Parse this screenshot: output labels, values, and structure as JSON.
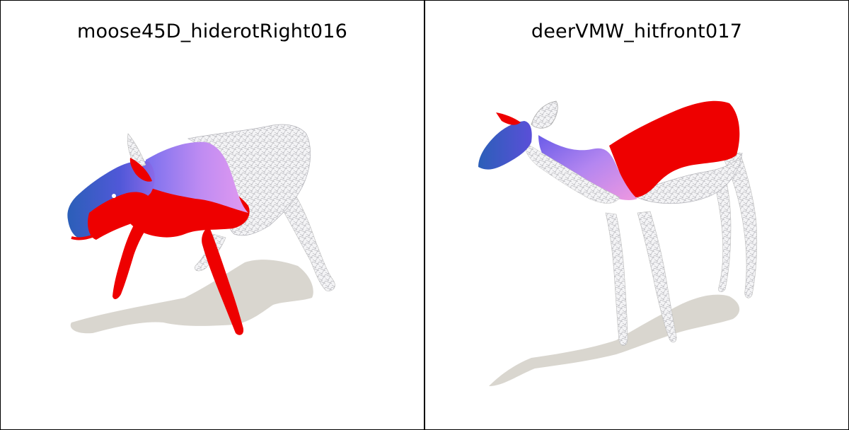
{
  "panels": [
    {
      "title": "moose45D_hiderotRight016",
      "subject": "moose"
    },
    {
      "title": "deerVMW_hitfront017",
      "subject": "deer"
    }
  ],
  "colors": {
    "background": "#ffffff",
    "border": "#000000",
    "shadow": "#d9d6cf",
    "mesh": "#e8e8ea",
    "red": "#ee0000",
    "blue": "#3a55c8",
    "violet": "#c58cf0"
  }
}
